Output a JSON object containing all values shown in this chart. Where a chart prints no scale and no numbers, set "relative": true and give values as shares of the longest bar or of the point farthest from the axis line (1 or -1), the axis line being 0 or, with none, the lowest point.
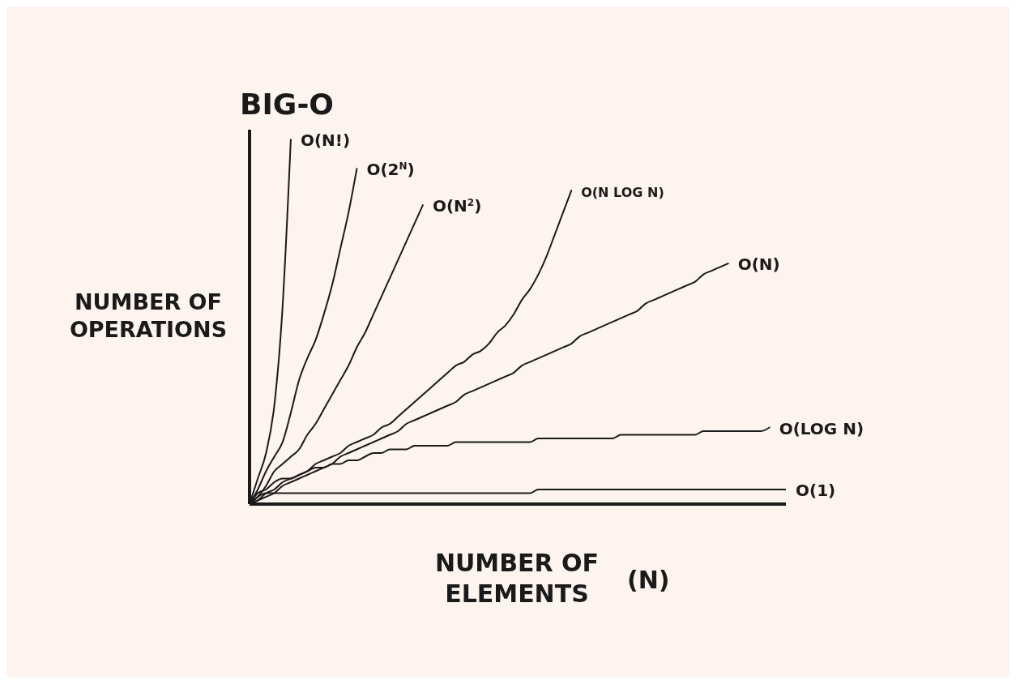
{
  "chart_data": {
    "type": "line",
    "title": "BIG-O",
    "xlabel": "NUMBER OF ELEMENTS (N)",
    "ylabel": "NUMBER OF OPERATIONS",
    "relative": true,
    "grid": false,
    "legend": false,
    "marker": "none",
    "line_style": "solid",
    "categories": [
      null,
      null,
      null,
      null,
      null,
      null,
      null,
      null,
      null,
      null,
      null,
      null,
      null,
      null,
      null,
      null,
      null,
      null,
      null,
      null,
      null,
      null,
      null,
      null,
      null,
      null,
      null,
      null,
      null,
      null,
      null,
      null,
      null,
      null,
      null,
      null,
      null,
      null,
      null,
      null,
      null,
      null,
      null,
      null,
      null,
      null,
      null,
      null,
      null,
      null,
      null,
      null,
      null,
      null,
      null,
      null,
      null,
      null,
      null,
      null,
      null,
      null,
      null,
      null,
      null,
      null
    ],
    "series": [
      {
        "name": "O(N!)",
        "color": "#1a1a1a",
        "values": [
          0,
          0.07,
          0.14,
          0.27,
          0.54,
          1,
          null,
          null,
          null,
          null,
          null,
          null,
          null,
          null,
          null,
          null,
          null,
          null,
          null,
          null,
          null,
          null,
          null,
          null,
          null,
          null,
          null,
          null,
          null,
          null,
          null,
          null,
          null,
          null,
          null,
          null,
          null,
          null,
          null,
          null,
          null,
          null,
          null,
          null,
          null,
          null,
          null,
          null,
          null,
          null,
          null,
          null,
          null,
          null,
          null,
          null,
          null,
          null,
          null,
          null,
          null,
          null,
          null,
          null,
          null,
          null
        ]
      },
      {
        "name": "O(2$^{N}$)",
        "color": "#1a1a1a",
        "values": [
          0,
          0.04,
          0.09,
          0.13,
          0.17,
          0.25,
          0.34,
          0.4,
          0.45,
          0.52,
          0.6,
          0.7,
          0.8,
          0.92,
          null,
          null,
          null,
          null,
          null,
          null,
          null,
          null,
          null,
          null,
          null,
          null,
          null,
          null,
          null,
          null,
          null,
          null,
          null,
          null,
          null,
          null,
          null,
          null,
          null,
          null,
          null,
          null,
          null,
          null,
          null,
          null,
          null,
          null,
          null,
          null,
          null,
          null,
          null,
          null,
          null,
          null,
          null,
          null,
          null,
          null,
          null,
          null,
          null,
          null,
          null,
          null
        ]
      },
      {
        "name": "O(N$^{2}$)",
        "color": "#1a1a1a",
        "values": [
          0,
          0.02,
          0.05,
          0.09,
          0.11,
          0.13,
          0.15,
          0.19,
          0.22,
          0.26,
          0.3,
          0.34,
          0.38,
          0.43,
          0.47,
          0.52,
          0.57,
          0.62,
          0.67,
          0.72,
          0.77,
          0.82,
          null,
          null,
          null,
          null,
          null,
          null,
          null,
          null,
          null,
          null,
          null,
          null,
          null,
          null,
          null,
          null,
          null,
          null,
          null,
          null,
          null,
          null,
          null,
          null,
          null,
          null,
          null,
          null,
          null,
          null,
          null,
          null,
          null,
          null,
          null,
          null,
          null,
          null,
          null,
          null,
          null,
          null,
          null,
          null
        ]
      },
      {
        "name": "O(N LOG N)",
        "color": "#1a1a1a",
        "values": [
          0,
          0.01,
          0.03,
          0.04,
          0.06,
          0.07,
          0.08,
          0.09,
          0.11,
          0.12,
          0.13,
          0.14,
          0.16,
          0.17,
          0.18,
          0.19,
          0.21,
          0.22,
          0.24,
          0.26,
          0.28,
          0.3,
          0.32,
          0.34,
          0.36,
          0.38,
          0.39,
          0.41,
          0.42,
          0.44,
          0.47,
          0.49,
          0.52,
          0.56,
          0.59,
          0.63,
          0.68,
          0.74,
          0.8,
          0.86,
          null,
          null,
          null,
          null,
          null,
          null,
          null,
          null,
          null,
          null,
          null,
          null,
          null,
          null,
          null,
          null,
          null,
          null,
          null,
          null,
          null,
          null,
          null,
          null,
          null,
          null
        ]
      },
      {
        "name": "O(N)",
        "color": "#1a1a1a",
        "values": [
          0,
          0.01,
          0.02,
          0.03,
          0.05,
          0.06,
          0.07,
          0.08,
          0.09,
          0.1,
          0.11,
          0.13,
          0.14,
          0.15,
          0.16,
          0.17,
          0.18,
          0.19,
          0.2,
          0.22,
          0.23,
          0.24,
          0.25,
          0.26,
          0.27,
          0.28,
          0.3,
          0.31,
          0.32,
          0.33,
          0.34,
          0.35,
          0.36,
          0.38,
          0.39,
          0.4,
          0.41,
          0.42,
          0.43,
          0.44,
          0.46,
          0.47,
          0.48,
          0.49,
          0.5,
          0.51,
          0.52,
          0.53,
          0.55,
          0.56,
          0.57,
          0.58,
          0.59,
          0.6,
          0.61,
          0.63,
          0.64,
          0.65,
          0.66,
          null,
          null,
          null,
          null,
          null,
          null,
          null
        ]
      },
      {
        "name": "O(LOG N)",
        "color": "#1a1a1a",
        "values": [
          0,
          0.03,
          0.04,
          0.06,
          0.07,
          0.07,
          0.08,
          0.09,
          0.1,
          0.1,
          0.11,
          0.11,
          0.12,
          0.12,
          0.13,
          0.14,
          0.14,
          0.15,
          0.15,
          0.15,
          0.16,
          0.16,
          0.16,
          0.16,
          0.16,
          0.17,
          0.17,
          0.17,
          0.17,
          0.17,
          0.17,
          0.17,
          0.17,
          0.17,
          0.17,
          0.18,
          0.18,
          0.18,
          0.18,
          0.18,
          0.18,
          0.18,
          0.18,
          0.18,
          0.18,
          0.19,
          0.19,
          0.19,
          0.19,
          0.19,
          0.19,
          0.19,
          0.19,
          0.19,
          0.19,
          0.2,
          0.2,
          0.2,
          0.2,
          0.2,
          0.2,
          0.2,
          0.2,
          0.21,
          null,
          null
        ]
      },
      {
        "name": "O(1)",
        "color": "#1a1a1a",
        "values": [
          0,
          0.02,
          0.03,
          0.03,
          0.03,
          0.03,
          0.03,
          0.03,
          0.03,
          0.03,
          0.03,
          0.03,
          0.03,
          0.03,
          0.03,
          0.03,
          0.03,
          0.03,
          0.03,
          0.03,
          0.03,
          0.03,
          0.03,
          0.03,
          0.03,
          0.03,
          0.03,
          0.03,
          0.03,
          0.03,
          0.03,
          0.03,
          0.03,
          0.03,
          0.03,
          0.04,
          0.04,
          0.04,
          0.04,
          0.04,
          0.04,
          0.04,
          0.04,
          0.04,
          0.04,
          0.04,
          0.04,
          0.04,
          0.04,
          0.04,
          0.04,
          0.04,
          0.04,
          0.04,
          0.04,
          0.04,
          0.04,
          0.04,
          0.04,
          0.04,
          0.04,
          0.04,
          0.04,
          0.04,
          0.04,
          0.04
        ]
      }
    ]
  }
}
